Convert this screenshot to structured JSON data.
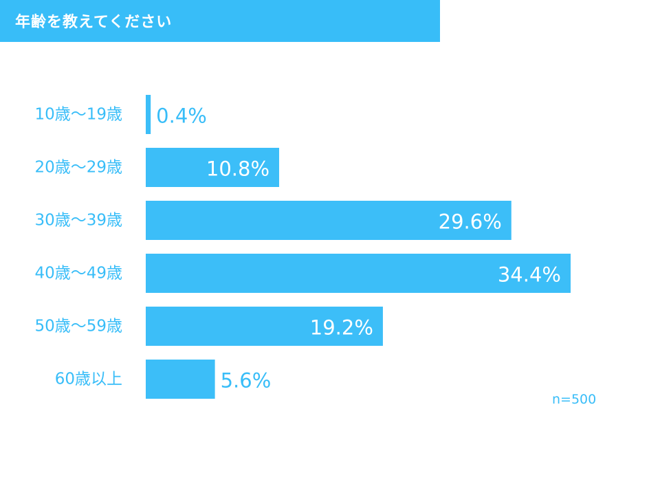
{
  "title": "年齢を教えてください",
  "sample_size_label": "n=500",
  "colors": {
    "bar": "#3cbef8",
    "title_banner": "#38bdf8",
    "title_text": "#ffffff",
    "label_text": "#38bdf8",
    "value_inside": "#ffffff",
    "value_outside": "#38bdf8"
  },
  "chart_data": {
    "type": "bar",
    "orientation": "horizontal",
    "categories": [
      "10歳～19歳",
      "20歳～29歳",
      "30歳～39歳",
      "40歳～49歳",
      "50歳～59歳",
      "60歳以上"
    ],
    "values": [
      0.4,
      10.8,
      29.6,
      34.4,
      19.2,
      5.6
    ],
    "value_labels": [
      "0.4%",
      "10.8%",
      "29.6%",
      "34.4%",
      "19.2%",
      "5.6%"
    ],
    "unit": "%",
    "xlim": [
      0,
      34.4
    ],
    "grid": false,
    "legend": "none"
  }
}
